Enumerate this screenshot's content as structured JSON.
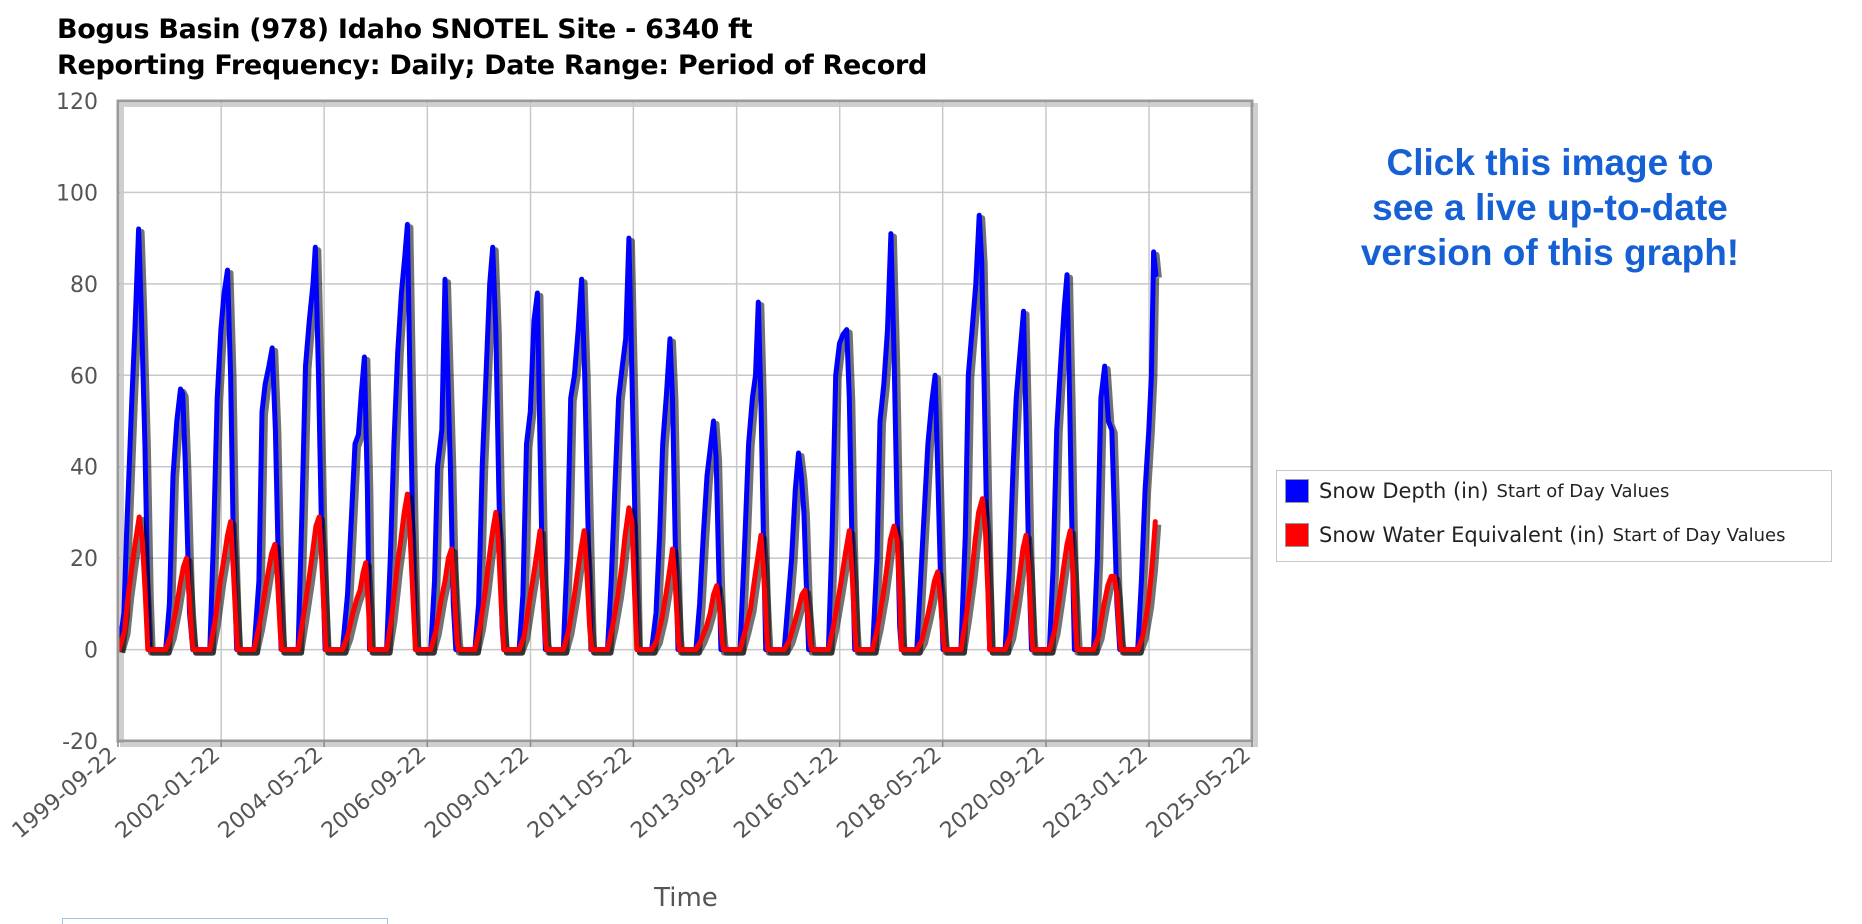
{
  "header": {
    "title_line1": "Bogus Basin (978) Idaho SNOTEL Site - 6340 ft",
    "title_line2": "Reporting Frequency: Daily; Date Range: Period of Record"
  },
  "cta": {
    "line1": "Click this image to",
    "line2": "see a live up-to-date",
    "line3": "version of this graph!"
  },
  "legend": {
    "items": [
      {
        "label": "Snow Depth (in)",
        "sub": "Start of Day Values",
        "color": "#0000ff"
      },
      {
        "label": "Snow Water Equivalent (in)",
        "sub": "Start of Day Values",
        "color": "#ff0000"
      }
    ]
  },
  "chart_data": {
    "type": "line",
    "xlabel": "Time",
    "ylabel": "",
    "ylim": [
      -20,
      120
    ],
    "yticks": [
      -20,
      0,
      20,
      40,
      60,
      80,
      100,
      120
    ],
    "xlim": [
      "1999-09-22",
      "2025-05-22"
    ],
    "xticks": [
      "1999-09-22",
      "2002-01-22",
      "2004-05-22",
      "2006-09-22",
      "2009-01-22",
      "2011-05-22",
      "2013-09-22",
      "2016-01-22",
      "2018-05-22",
      "2020-09-22",
      "2023-01-22",
      "2025-05-22"
    ],
    "grid": true,
    "legend_position": "right",
    "series": [
      {
        "name": "Snow Depth (in)",
        "color": "#0000ff",
        "x": [
          "1999-10-01",
          "1999-11-10",
          "1999-12-01",
          "2000-01-15",
          "2000-02-10",
          "2000-03-10",
          "2000-04-01",
          "2000-05-01",
          "2000-05-25",
          "2000-06-10",
          "2000-10-20",
          "2000-11-20",
          "2000-12-20",
          "2001-01-20",
          "2001-02-20",
          "2001-03-10",
          "2001-04-01",
          "2001-05-05",
          "2001-06-01",
          "2001-10-20",
          "2001-11-20",
          "2001-12-20",
          "2002-01-20",
          "2002-02-15",
          "2002-03-15",
          "2002-04-10",
          "2002-05-01",
          "2002-05-30",
          "2002-10-20",
          "2002-11-30",
          "2002-12-25",
          "2003-01-20",
          "2003-02-20",
          "2003-03-20",
          "2003-04-15",
          "2003-05-10",
          "2003-06-01",
          "2003-10-20",
          "2003-11-20",
          "2003-12-20",
          "2004-01-20",
          "2004-02-20",
          "2004-03-10",
          "2004-04-05",
          "2004-05-01",
          "2004-05-30",
          "2004-10-20",
          "2004-12-01",
          "2005-01-01",
          "2005-02-01",
          "2005-03-01",
          "2005-03-25",
          "2005-04-20",
          "2005-05-15",
          "2005-06-01",
          "2005-10-20",
          "2005-11-20",
          "2005-12-20",
          "2006-01-20",
          "2006-02-20",
          "2006-03-20",
          "2006-04-10",
          "2006-05-01",
          "2006-05-25",
          "2006-06-15",
          "2006-10-20",
          "2006-11-20",
          "2006-12-15",
          "2007-01-20",
          "2007-02-15",
          "2007-03-10",
          "2007-04-01",
          "2007-04-25",
          "2007-05-15",
          "2007-10-20",
          "2007-11-20",
          "2007-12-20",
          "2008-01-20",
          "2008-02-20",
          "2008-03-15",
          "2008-04-10",
          "2008-05-05",
          "2008-06-01",
          "2008-06-15",
          "2008-10-20",
          "2008-11-20",
          "2008-12-20",
          "2009-01-20",
          "2009-02-20",
          "2009-03-20",
          "2009-04-10",
          "2009-05-01",
          "2009-05-25",
          "2009-10-20",
          "2009-11-20",
          "2009-12-20",
          "2010-01-20",
          "2010-02-20",
          "2010-03-20",
          "2010-04-15",
          "2010-05-10",
          "2010-06-05",
          "2010-10-20",
          "2010-11-20",
          "2010-12-20",
          "2011-01-20",
          "2011-02-20",
          "2011-03-20",
          "2011-04-15",
          "2011-05-10",
          "2011-06-05",
          "2011-06-20",
          "2011-10-20",
          "2011-11-25",
          "2011-12-25",
          "2012-01-20",
          "2012-02-20",
          "2012-03-20",
          "2012-04-10",
          "2012-05-01",
          "2012-05-25",
          "2012-10-20",
          "2012-11-20",
          "2012-12-20",
          "2013-01-20",
          "2013-02-20",
          "2013-03-15",
          "2013-04-05",
          "2013-04-25",
          "2013-05-15",
          "2013-10-20",
          "2013-11-30",
          "2013-12-30",
          "2014-01-30",
          "2014-02-25",
          "2014-03-20",
          "2014-04-10",
          "2014-05-01",
          "2014-05-20",
          "2014-10-20",
          "2014-11-20",
          "2014-12-20",
          "2015-01-20",
          "2015-02-15",
          "2015-03-10",
          "2015-04-01",
          "2015-04-20",
          "2015-05-10",
          "2015-10-20",
          "2015-11-20",
          "2015-12-20",
          "2016-01-20",
          "2016-02-20",
          "2016-03-20",
          "2016-04-10",
          "2016-05-01",
          "2016-05-25",
          "2016-10-20",
          "2016-11-25",
          "2016-12-20",
          "2017-01-20",
          "2017-02-20",
          "2017-03-20",
          "2017-04-15",
          "2017-05-10",
          "2017-06-01",
          "2017-06-15",
          "2017-10-20",
          "2017-11-20",
          "2017-12-20",
          "2018-01-20",
          "2018-02-20",
          "2018-03-20",
          "2018-04-10",
          "2018-05-05",
          "2018-05-25",
          "2018-10-20",
          "2018-11-25",
          "2018-12-20",
          "2019-01-20",
          "2019-02-20",
          "2019-03-20",
          "2019-04-10",
          "2019-05-05",
          "2019-05-30",
          "2019-06-15",
          "2019-10-20",
          "2019-11-25",
          "2019-12-25",
          "2020-01-20",
          "2020-02-20",
          "2020-03-20",
          "2020-04-10",
          "2020-05-01",
          "2020-05-25",
          "2020-10-20",
          "2020-11-20",
          "2020-12-20",
          "2021-01-20",
          "2021-02-20",
          "2021-03-15",
          "2021-04-05",
          "2021-04-25",
          "2021-05-15",
          "2021-10-20",
          "2021-11-20",
          "2021-12-20",
          "2022-01-20",
          "2022-02-20",
          "2022-03-20",
          "2022-04-10",
          "2022-05-01",
          "2022-05-25",
          "2022-10-20",
          "2022-11-20",
          "2022-12-20",
          "2023-01-20",
          "2023-02-10",
          "2023-03-01",
          "2023-03-20"
        ],
        "values": [
          0,
          8,
          25,
          55,
          71,
          92,
          75,
          45,
          12,
          0,
          0,
          10,
          38,
          50,
          57,
          56,
          40,
          8,
          0,
          0,
          25,
          55,
          70,
          78,
          83,
          60,
          25,
          0,
          0,
          15,
          52,
          58,
          62,
          66,
          48,
          18,
          0,
          0,
          30,
          62,
          72,
          80,
          88,
          60,
          25,
          0,
          0,
          12,
          28,
          45,
          47,
          56,
          64,
          35,
          0,
          0,
          20,
          45,
          65,
          78,
          86,
          93,
          60,
          25,
          0,
          0,
          15,
          40,
          48,
          81,
          60,
          40,
          10,
          0,
          0,
          10,
          40,
          60,
          80,
          88,
          70,
          35,
          5,
          0,
          0,
          12,
          45,
          52,
          72,
          78,
          45,
          15,
          0,
          0,
          20,
          55,
          60,
          70,
          81,
          60,
          30,
          0,
          0,
          15,
          35,
          55,
          62,
          68,
          90,
          60,
          28,
          0,
          0,
          8,
          25,
          45,
          56,
          68,
          55,
          25,
          0,
          0,
          10,
          25,
          38,
          45,
          50,
          42,
          20,
          0,
          0,
          25,
          45,
          55,
          60,
          76,
          55,
          25,
          0,
          0,
          10,
          20,
          35,
          43,
          38,
          30,
          15,
          0,
          0,
          25,
          60,
          67,
          69,
          70,
          55,
          25,
          0,
          0,
          20,
          50,
          58,
          70,
          91,
          65,
          30,
          5,
          0,
          0,
          15,
          30,
          45,
          54,
          60,
          40,
          15,
          0,
          0,
          25,
          60,
          70,
          80,
          95,
          85,
          50,
          15,
          0,
          0,
          18,
          40,
          55,
          65,
          74,
          50,
          20,
          0,
          0,
          18,
          48,
          62,
          75,
          82,
          55,
          25,
          0,
          0,
          20,
          55,
          62,
          50,
          48,
          30,
          10,
          0,
          0,
          15,
          35,
          48,
          60,
          87,
          82
        ]
      },
      {
        "name": "Snow Water Equivalent (in)",
        "color": "#ff0000",
        "x": [
          "1999-10-01",
          "1999-11-15",
          "1999-12-15",
          "2000-01-15",
          "2000-02-15",
          "2000-03-15",
          "2000-04-10",
          "2000-05-05",
          "2000-05-25",
          "2000-06-10",
          "2000-10-20",
          "2000-12-01",
          "2001-01-15",
          "2001-02-15",
          "2001-03-15",
          "2001-04-10",
          "2001-05-01",
          "2001-05-25",
          "2001-06-05",
          "2001-10-20",
          "2001-12-01",
          "2002-01-15",
          "2002-02-15",
          "2002-03-15",
          "2002-04-10",
          "2002-05-01",
          "2002-05-25",
          "2002-06-05",
          "2002-10-20",
          "2002-12-01",
          "2003-01-15",
          "2003-02-15",
          "2003-03-15",
          "2003-04-10",
          "2003-05-01",
          "2003-05-25",
          "2003-06-05",
          "2003-10-20",
          "2003-12-01",
          "2004-01-15",
          "2004-02-15",
          "2004-03-15",
          "2004-04-10",
          "2004-05-01",
          "2004-05-25",
          "2004-06-05",
          "2004-10-20",
          "2004-12-01",
          "2005-01-15",
          "2005-02-15",
          "2005-03-15",
          "2005-04-10",
          "2005-05-01",
          "2005-05-25",
          "2005-06-05",
          "2005-10-20",
          "2005-12-01",
          "2006-01-15",
          "2006-02-15",
          "2006-03-15",
          "2006-04-10",
          "2006-05-01",
          "2006-05-25",
          "2006-06-15",
          "2006-10-20",
          "2006-12-01",
          "2007-01-15",
          "2007-02-15",
          "2007-03-15",
          "2007-04-10",
          "2007-05-01",
          "2007-05-25",
          "2007-06-05",
          "2007-10-20",
          "2007-12-01",
          "2008-01-15",
          "2008-02-15",
          "2008-03-15",
          "2008-04-10",
          "2008-05-01",
          "2008-05-25",
          "2008-06-15",
          "2008-10-20",
          "2008-12-01",
          "2009-01-15",
          "2009-02-15",
          "2009-03-15",
          "2009-04-10",
          "2009-05-01",
          "2009-05-25",
          "2009-06-05",
          "2009-10-20",
          "2009-12-01",
          "2010-01-15",
          "2010-02-15",
          "2010-03-15",
          "2010-04-10",
          "2010-05-01",
          "2010-05-25",
          "2010-06-10",
          "2010-10-20",
          "2010-12-01",
          "2011-01-15",
          "2011-02-15",
          "2011-03-15",
          "2011-04-15",
          "2011-05-10",
          "2011-06-01",
          "2011-06-20",
          "2011-10-20",
          "2011-12-01",
          "2012-01-15",
          "2012-02-15",
          "2012-03-15",
          "2012-04-10",
          "2012-05-01",
          "2012-05-25",
          "2012-06-05",
          "2012-10-20",
          "2012-12-01",
          "2013-01-15",
          "2013-02-15",
          "2013-03-15",
          "2013-04-10",
          "2013-05-01",
          "2013-05-25",
          "2013-06-05",
          "2013-10-20",
          "2013-12-01",
          "2014-01-15",
          "2014-02-15",
          "2014-03-15",
          "2014-04-10",
          "2014-05-01",
          "2014-05-25",
          "2014-06-05",
          "2014-10-20",
          "2014-12-01",
          "2015-01-15",
          "2015-02-15",
          "2015-03-15",
          "2015-04-10",
          "2015-05-01",
          "2015-05-25",
          "2015-06-05",
          "2015-10-20",
          "2015-12-01",
          "2016-01-15",
          "2016-02-15",
          "2016-03-15",
          "2016-04-10",
          "2016-05-01",
          "2016-05-25",
          "2016-06-05",
          "2016-10-20",
          "2016-12-01",
          "2017-01-15",
          "2017-02-15",
          "2017-03-15",
          "2017-04-15",
          "2017-05-10",
          "2017-06-01",
          "2017-06-15",
          "2017-10-20",
          "2017-12-01",
          "2018-01-15",
          "2018-02-15",
          "2018-03-15",
          "2018-04-10",
          "2018-05-01",
          "2018-05-25",
          "2018-06-05",
          "2018-10-20",
          "2018-12-01",
          "2019-01-15",
          "2019-02-15",
          "2019-03-15",
          "2019-04-15",
          "2019-05-10",
          "2019-06-01",
          "2019-06-15",
          "2019-10-20",
          "2019-12-01",
          "2020-01-15",
          "2020-02-15",
          "2020-03-15",
          "2020-04-10",
          "2020-05-01",
          "2020-05-25",
          "2020-06-05",
          "2020-10-20",
          "2020-12-01",
          "2021-01-15",
          "2021-02-15",
          "2021-03-15",
          "2021-04-10",
          "2021-05-01",
          "2021-05-25",
          "2021-06-05",
          "2021-10-20",
          "2021-12-01",
          "2022-01-15",
          "2022-02-15",
          "2022-03-15",
          "2022-04-10",
          "2022-05-01",
          "2022-05-25",
          "2022-06-05",
          "2022-10-20",
          "2022-12-01",
          "2023-01-15",
          "2023-02-15",
          "2023-03-15"
        ],
        "values": [
          0,
          4,
          12,
          18,
          24,
          29,
          24,
          12,
          0,
          0,
          0,
          3,
          9,
          14,
          18,
          20,
          12,
          2,
          0,
          0,
          6,
          15,
          20,
          25,
          28,
          18,
          5,
          0,
          0,
          5,
          12,
          17,
          21,
          23,
          16,
          4,
          0,
          0,
          7,
          15,
          21,
          27,
          29,
          20,
          6,
          0,
          0,
          3,
          8,
          11,
          13,
          17,
          19,
          8,
          0,
          0,
          7,
          18,
          24,
          30,
          34,
          26,
          12,
          0,
          0,
          4,
          11,
          15,
          20,
          22,
          12,
          2,
          0,
          0,
          5,
          13,
          20,
          26,
          30,
          24,
          10,
          0,
          0,
          3,
          11,
          16,
          21,
          26,
          15,
          2,
          0,
          0,
          4,
          11,
          17,
          22,
          26,
          18,
          5,
          0,
          0,
          5,
          12,
          18,
          25,
          31,
          28,
          12,
          0,
          0,
          2,
          7,
          12,
          17,
          22,
          15,
          3,
          0,
          0,
          2,
          5,
          8,
          12,
          14,
          10,
          2,
          0,
          0,
          4,
          9,
          15,
          20,
          25,
          18,
          5,
          0,
          0,
          2,
          6,
          9,
          12,
          13,
          8,
          1,
          0,
          0,
          5,
          12,
          17,
          22,
          26,
          18,
          5,
          0,
          0,
          5,
          12,
          18,
          24,
          27,
          24,
          12,
          0,
          0,
          2,
          7,
          11,
          15,
          17,
          12,
          3,
          0,
          0,
          7,
          16,
          24,
          30,
          33,
          26,
          12,
          0,
          0,
          3,
          10,
          16,
          22,
          25,
          18,
          4,
          0,
          0,
          4,
          12,
          18,
          23,
          26,
          18,
          5,
          0,
          0,
          3,
          10,
          14,
          16,
          16,
          12,
          2,
          0,
          0,
          3,
          10,
          18,
          28
        ]
      }
    ]
  }
}
